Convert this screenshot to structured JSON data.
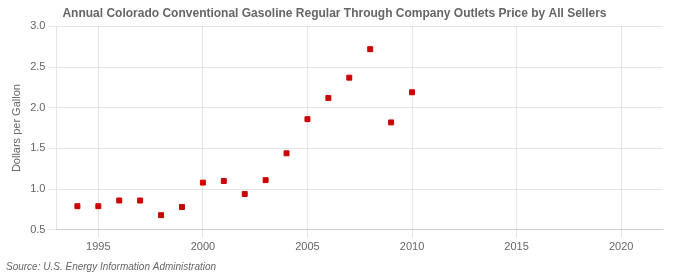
{
  "chart_data": {
    "type": "scatter",
    "title": "Annual Colorado Conventional Gasoline Regular Through Company Outlets Price by All Sellers",
    "ylabel": "Dollars per Gallon",
    "annotation": "Source: U.S. Energy Information Administration",
    "x": [
      1994,
      1995,
      1996,
      1997,
      1998,
      1999,
      2000,
      2001,
      2002,
      2003,
      2004,
      2005,
      2006,
      2007,
      2008,
      2009,
      2010
    ],
    "values": [
      0.79,
      0.79,
      0.86,
      0.86,
      0.68,
      0.78,
      1.08,
      1.1,
      0.94,
      1.11,
      1.44,
      1.86,
      2.12,
      2.37,
      2.72,
      1.82,
      2.19
    ],
    "color": "#cc0000",
    "marker": "square",
    "xlim": [
      1993,
      2022
    ],
    "ylim": [
      0.5,
      3.0
    ],
    "xticks": [
      1995,
      2000,
      2005,
      2010,
      2015,
      2020
    ],
    "yticks": [
      0.5,
      {
        "value": 1,
        "label": "1.0"
      },
      1.5,
      {
        "value": 2,
        "label": "2.0"
      },
      2.5,
      {
        "value": 3,
        "label": "3.0"
      }
    ],
    "grid": true
  }
}
